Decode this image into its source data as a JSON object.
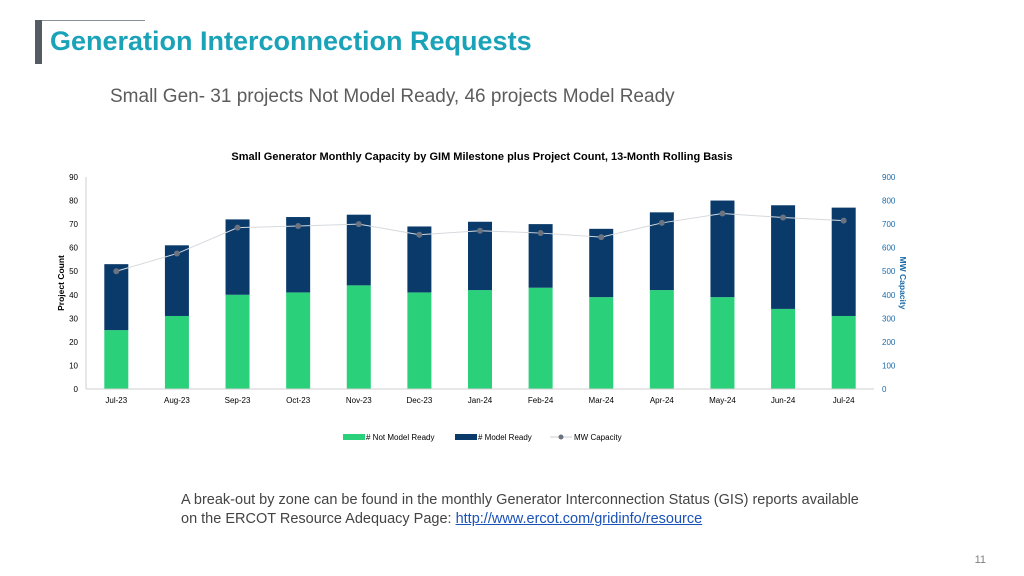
{
  "slide": {
    "title": "Generation Interconnection Requests",
    "subtitle": "Small Gen- 31 projects Not Model Ready, 46 projects Model Ready",
    "note_text": "A break-out by zone can be found in the monthly Generator Interconnection Status (GIS) reports available on the ERCOT Resource Adequacy Page: ",
    "note_link": "http://www.ercot.com/gridinfo/resource",
    "page_number": "11"
  },
  "chart_data": {
    "type": "bar",
    "stacked": true,
    "title": "Small Generator Monthly Capacity by GIM Milestone plus Project Count, 13-Month Rolling Basis",
    "ylabel": "Project Count",
    "y2label": "MW Capacity",
    "ylim": [
      0,
      90
    ],
    "y2lim": [
      0,
      900
    ],
    "yticks": [
      0,
      10,
      20,
      30,
      40,
      50,
      60,
      70,
      80,
      90
    ],
    "y2ticks": [
      0,
      100,
      200,
      300,
      400,
      500,
      600,
      700,
      800,
      900
    ],
    "categories": [
      "Jul-23",
      "Aug-23",
      "Sep-23",
      "Oct-23",
      "Nov-23",
      "Dec-23",
      "Jan-24",
      "Feb-24",
      "Mar-24",
      "Apr-24",
      "May-24",
      "Jun-24",
      "Jul-24"
    ],
    "series": [
      {
        "name": "# Not Model Ready",
        "type": "bar",
        "color": "#2ad07a",
        "values": [
          25,
          31,
          40,
          41,
          44,
          41,
          42,
          43,
          39,
          42,
          39,
          34,
          31
        ]
      },
      {
        "name": "# Model Ready",
        "type": "bar",
        "color": "#0a3a6a",
        "values": [
          28,
          30,
          32,
          32,
          30,
          28,
          29,
          27,
          29,
          33,
          41,
          44,
          46
        ]
      },
      {
        "name": "MW Capacity",
        "type": "line",
        "axis": "right",
        "color": "#6b7280",
        "values": [
          500,
          575,
          685,
          692,
          700,
          655,
          672,
          662,
          645,
          705,
          745,
          728,
          715
        ]
      }
    ],
    "legend_position": "bottom",
    "grid": false
  }
}
